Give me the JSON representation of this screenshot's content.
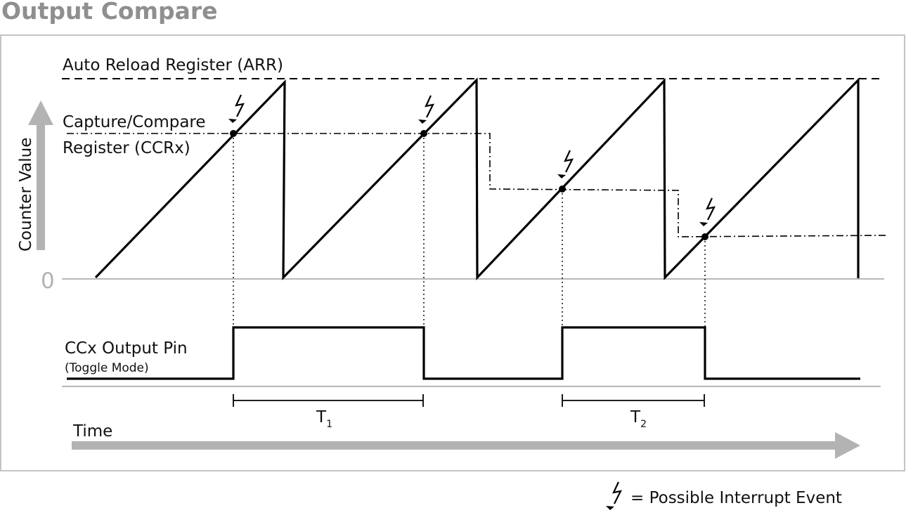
{
  "title": "Output Compare",
  "labels": {
    "arr": "Auto Reload Register (ARR)",
    "ccr_line1": "Capture/Compare",
    "ccr_line2": "Register (CCRx)",
    "counter_value": "Counter Value",
    "zero": "0",
    "output_pin": "CCx Output Pin",
    "toggle_mode": "(Toggle Mode)",
    "time": "Time",
    "t1_main": "T",
    "t1_sub": "1",
    "t2_main": "T",
    "t2_sub": "2"
  },
  "legend": {
    "text": "= Possible Interrupt Event",
    "icon": "lightning-bolt-icon"
  },
  "colors": {
    "title": "#8f8f8f",
    "frame": "#c4c4c4",
    "arrow": "#b3b3b3",
    "baseline": "#b8b8b8",
    "ink": "#000000"
  }
}
